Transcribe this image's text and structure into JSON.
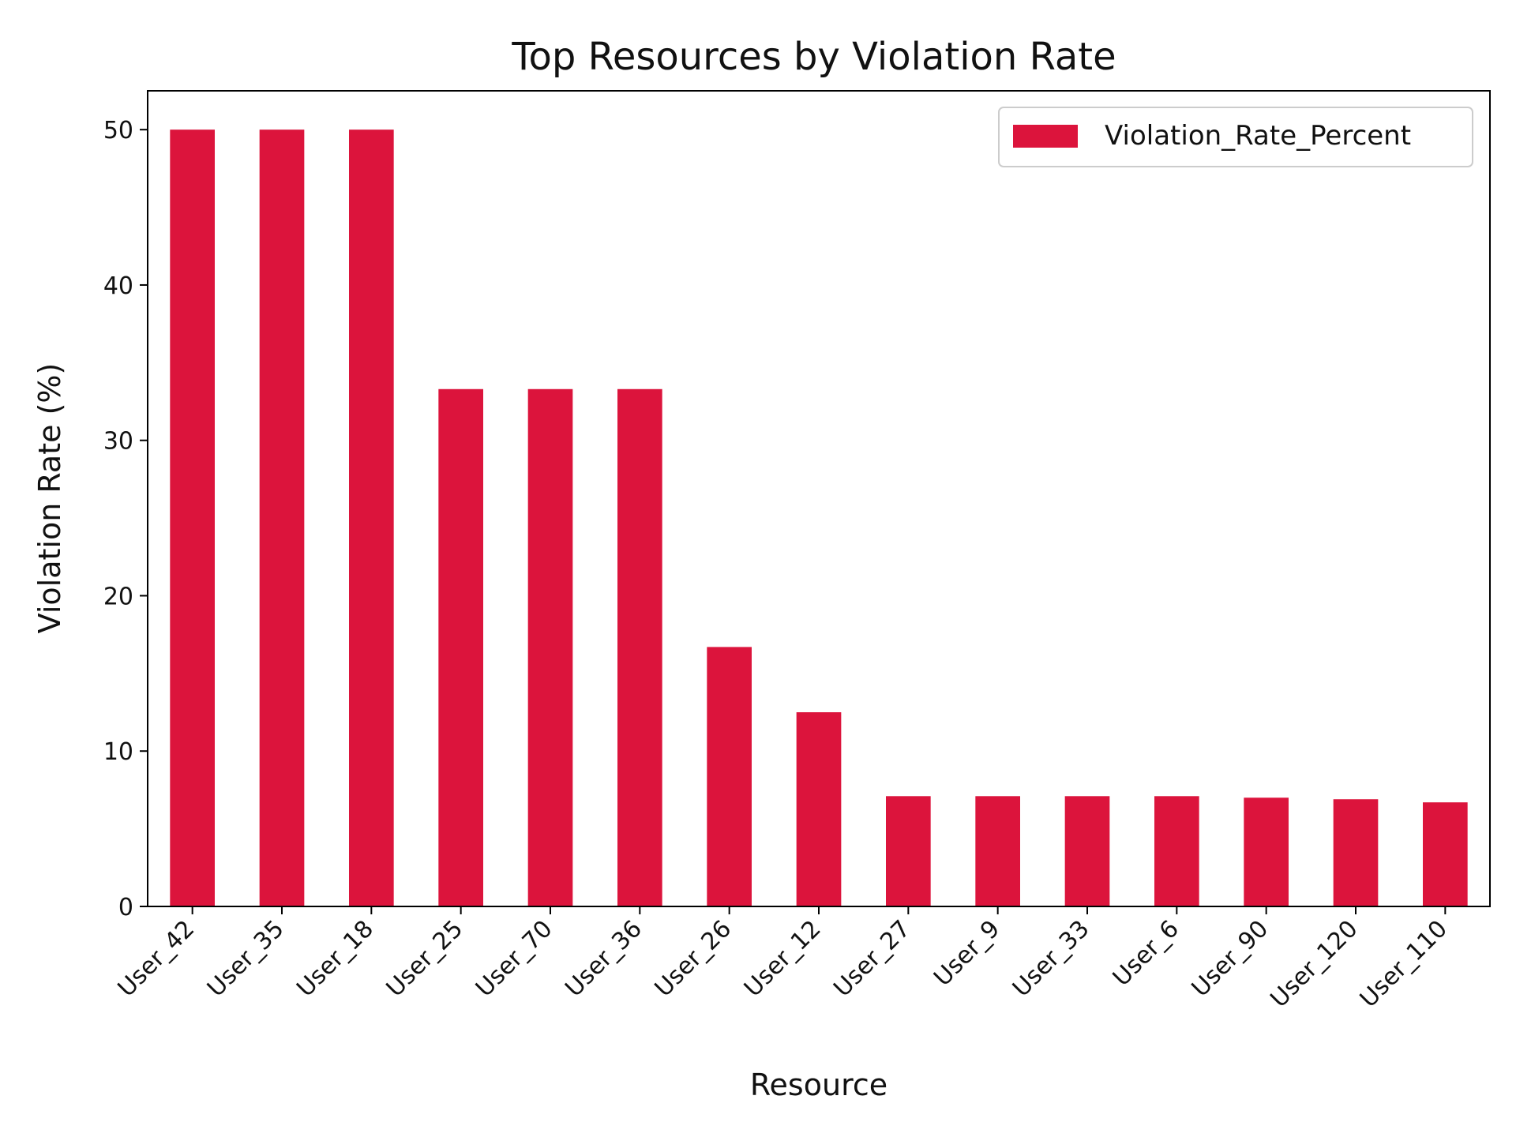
{
  "chart_data": {
    "type": "bar",
    "title": "Top Resources by Violation Rate",
    "xlabel": "Resource",
    "ylabel": "Violation Rate (%)",
    "categories": [
      "User_42",
      "User_35",
      "User_18",
      "User_25",
      "User_70",
      "User_36",
      "User_26",
      "User_12",
      "User_27",
      "User_9",
      "User_33",
      "User_6",
      "User_90",
      "User_120",
      "User_110"
    ],
    "series": [
      {
        "name": "Violation_Rate_Percent",
        "color": "#dc143c",
        "values": [
          50.0,
          50.0,
          50.0,
          33.3,
          33.3,
          33.3,
          16.7,
          12.5,
          7.1,
          7.1,
          7.1,
          7.1,
          7.0,
          6.9,
          6.7
        ]
      }
    ],
    "ylim": [
      0,
      52.5
    ],
    "yticks": [
      0,
      10,
      20,
      30,
      40,
      50
    ],
    "grid": false,
    "legend_position": "top-right"
  }
}
